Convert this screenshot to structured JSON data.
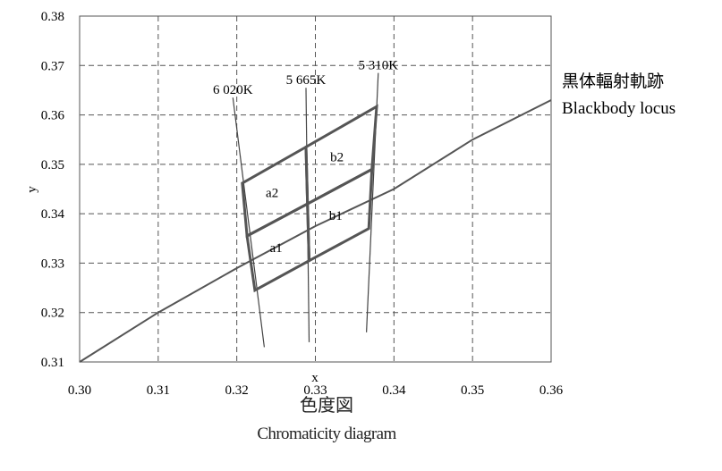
{
  "chart_data": {
    "type": "line",
    "xlabel": "x",
    "ylabel": "y",
    "xlim": [
      0.3,
      0.36
    ],
    "ylim": [
      0.31,
      0.38
    ],
    "xticks": [
      "0.30",
      "0.31",
      "0.32",
      "0.33",
      "0.34",
      "0.35",
      "0.36"
    ],
    "yticks": [
      "0.31",
      "0.32",
      "0.33",
      "0.34",
      "0.35",
      "0.36",
      "0.37",
      "0.38"
    ],
    "grid": true,
    "blackbody_locus": {
      "label_jp": "黒体輻射軌跡",
      "label_en": "Blackbody locus",
      "points": [
        [
          0.3,
          0.31
        ],
        [
          0.31,
          0.32
        ],
        [
          0.32,
          0.329
        ],
        [
          0.33,
          0.3375
        ],
        [
          0.34,
          0.345
        ],
        [
          0.35,
          0.355
        ],
        [
          0.36,
          0.363
        ]
      ]
    },
    "isotherms": [
      {
        "label": "6 020K",
        "points": [
          [
            0.3195,
            0.3635
          ],
          [
            0.3235,
            0.313
          ]
        ]
      },
      {
        "label": "5 665K",
        "points": [
          [
            0.3288,
            0.3655
          ],
          [
            0.3292,
            0.314
          ]
        ]
      },
      {
        "label": "5 310K",
        "points": [
          [
            0.338,
            0.3685
          ],
          [
            0.3365,
            0.316
          ]
        ]
      }
    ],
    "regions": [
      {
        "label": "a1",
        "points": [
          [
            0.3223,
            0.3245
          ],
          [
            0.3292,
            0.3305
          ],
          [
            0.329,
            0.342
          ],
          [
            0.3213,
            0.3355
          ]
        ]
      },
      {
        "label": "a2",
        "points": [
          [
            0.3213,
            0.3355
          ],
          [
            0.329,
            0.342
          ],
          [
            0.3288,
            0.3535
          ],
          [
            0.3207,
            0.3462
          ]
        ]
      },
      {
        "label": "b1",
        "points": [
          [
            0.3292,
            0.3305
          ],
          [
            0.3368,
            0.337
          ],
          [
            0.3372,
            0.349
          ],
          [
            0.329,
            0.342
          ]
        ]
      },
      {
        "label": "b2",
        "points": [
          [
            0.329,
            0.342
          ],
          [
            0.3372,
            0.349
          ],
          [
            0.3378,
            0.3617
          ],
          [
            0.3288,
            0.3535
          ]
        ]
      }
    ],
    "caption_jp": "色度図",
    "caption_en": "Chromaticity diagram"
  }
}
